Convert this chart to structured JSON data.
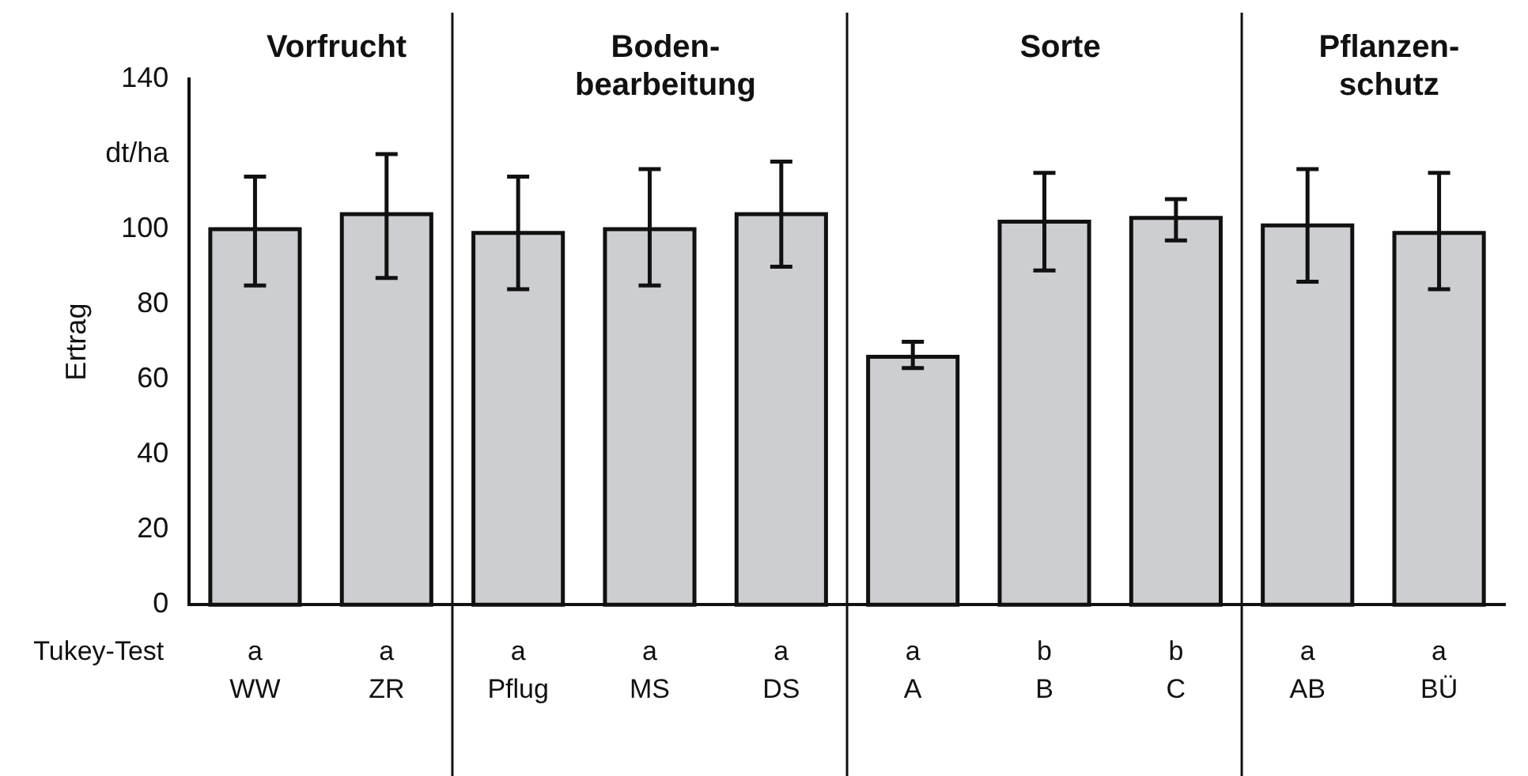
{
  "chart_data": {
    "type": "bar",
    "ylabel": "Ertrag",
    "categories": [
      "WW",
      "ZR",
      "Pflug",
      "MS",
      "DS",
      "A",
      "B",
      "C",
      "AB",
      "BÜ"
    ],
    "values": [
      100,
      104,
      99,
      100,
      104,
      66,
      102,
      103,
      101,
      99
    ],
    "errors": [
      [
        85,
        114
      ],
      [
        87,
        120
      ],
      [
        84,
        114
      ],
      [
        85,
        116
      ],
      [
        90,
        118
      ],
      [
        63,
        70
      ],
      [
        89,
        115
      ],
      [
        97,
        108
      ],
      [
        86,
        116
      ],
      [
        84,
        115
      ]
    ],
    "color": "#ccced1",
    "ylim": [
      0,
      140
    ],
    "yticks": [
      0,
      20,
      40,
      60,
      80,
      100,
      {
        "value": 120,
        "label": "dt/ha"
      },
      140
    ],
    "grid": false,
    "legend": false,
    "annotations": [
      "Vorfrucht",
      "Boden-\nbearbeitung",
      "Sorte",
      "Pflanzen-\nschutz",
      "Tukey-Test",
      "a",
      "a",
      "a",
      "a",
      "a",
      "a",
      "b",
      "b",
      "a",
      "a"
    ]
  }
}
